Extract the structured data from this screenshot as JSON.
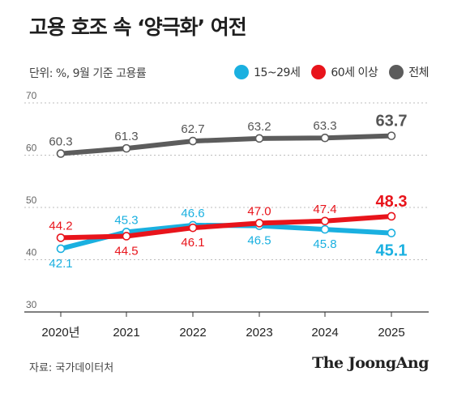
{
  "title": "고용 호조 속 ‘양극화’ 여전",
  "subtitle": "단위: %, 9월 기준 고용률",
  "source": "자료: 국가데이터처",
  "logo": "The JoongAng",
  "chart_data": {
    "type": "line",
    "categories": [
      "2020년",
      "2021",
      "2022",
      "2023",
      "2024",
      "2025"
    ],
    "yticks": [
      30,
      40,
      50,
      60,
      70
    ],
    "ylim": [
      30,
      70
    ],
    "grid": true,
    "legend_position": "top-right",
    "series": [
      {
        "name": "15~29세",
        "color": "#1ab0e0",
        "values": [
          42.1,
          45.3,
          46.6,
          46.5,
          45.8,
          45.1
        ],
        "label_position": [
          "below",
          "above",
          "above",
          "below",
          "below",
          "below"
        ]
      },
      {
        "name": "60세 이상",
        "color": "#e8141b",
        "values": [
          44.2,
          44.5,
          46.1,
          47.0,
          47.4,
          48.3
        ],
        "label_position": [
          "above",
          "below",
          "below",
          "above",
          "above",
          "above"
        ]
      },
      {
        "name": "전체",
        "color": "#5c5c5c",
        "values": [
          60.3,
          61.3,
          62.7,
          63.2,
          63.3,
          63.7
        ],
        "label_position": [
          "above",
          "above",
          "above",
          "above",
          "above",
          "above"
        ]
      }
    ]
  }
}
